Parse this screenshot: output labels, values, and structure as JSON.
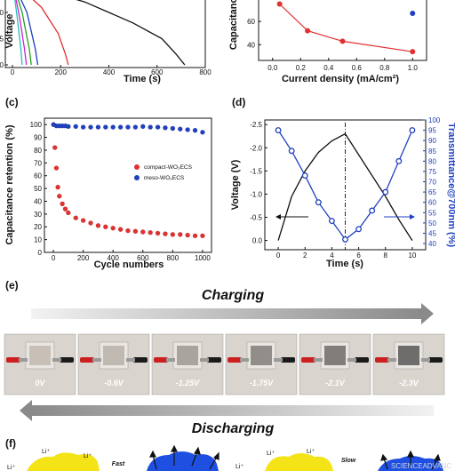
{
  "chart_data": [
    {
      "panel": "",
      "type": "line",
      "xlabel": "Time (s)",
      "ylabel": "Voltage",
      "x_ticks": [
        "0",
        "200",
        "400",
        "600",
        "800"
      ],
      "y_ticks": [
        "-1.0",
        "-0.5",
        "0.0"
      ],
      "xlim": [
        0,
        800
      ],
      "series": [
        {
          "color": "#111111",
          "x": [
            0,
            300,
            500,
            620,
            680,
            715
          ],
          "y": [
            -1.6,
            -1.2,
            -0.8,
            -0.5,
            -0.2,
            0.0
          ]
        },
        {
          "color": "#e03030",
          "x": [
            0,
            120,
            190,
            220,
            232
          ],
          "y": [
            -1.6,
            -1.1,
            -0.6,
            -0.2,
            0.0
          ]
        },
        {
          "color": "#2040c0",
          "x": [
            0,
            60,
            95,
            105
          ],
          "y": [
            -1.6,
            -1.0,
            -0.3,
            0.0
          ]
        },
        {
          "color": "#20a020",
          "x": [
            0,
            40,
            70,
            78
          ],
          "y": [
            -1.6,
            -1.0,
            -0.3,
            0.0
          ]
        },
        {
          "color": "#d020d0",
          "x": [
            0,
            30,
            50,
            58
          ],
          "y": [
            -1.6,
            -0.9,
            -0.3,
            0.0
          ]
        },
        {
          "color": "#20c0c0",
          "x": [
            0,
            20,
            35,
            40
          ],
          "y": [
            -1.6,
            -0.9,
            -0.3,
            0.0
          ]
        }
      ]
    },
    {
      "panel": "",
      "type": "line",
      "xlabel": "Current density (mA/cm²)",
      "ylabel": "Capacitance r",
      "x_ticks": [
        "0.0",
        "0.2",
        "0.4",
        "0.6",
        "0.8",
        "1.0"
      ],
      "y_ticks": [
        "40",
        "60"
      ],
      "xlim": [
        -0.1,
        1.1
      ],
      "ylim": [
        28,
        80
      ],
      "series": [
        {
          "color": "#e03030",
          "x": [
            0.05,
            0.25,
            0.5,
            1.0
          ],
          "y": [
            75,
            52,
            43,
            34
          ]
        },
        {
          "color": "#2040c0",
          "x": [
            1.0
          ],
          "y": [
            67
          ]
        }
      ]
    },
    {
      "panel": "(c)",
      "type": "scatter",
      "xlabel": "Cycle numbers",
      "ylabel": "Capacitance retention (%)",
      "x_ticks": [
        "0",
        "200",
        "400",
        "600",
        "800",
        "1000"
      ],
      "y_ticks": [
        "0",
        "10",
        "20",
        "30",
        "40",
        "50",
        "60",
        "70",
        "80",
        "90",
        "100"
      ],
      "xlim": [
        -60,
        1060
      ],
      "ylim": [
        0,
        105
      ],
      "legend": [
        "compact-WO₃ECS",
        "meso-WO₃ECS"
      ],
      "legend_position": "center-right",
      "series": [
        {
          "name": "compact-WO₃ECS",
          "color": "#e03030",
          "x": [
            1,
            10,
            20,
            30,
            40,
            60,
            80,
            100,
            150,
            200,
            250,
            300,
            350,
            400,
            450,
            500,
            550,
            600,
            650,
            700,
            750,
            800,
            850,
            900,
            950,
            1000
          ],
          "y": [
            100,
            82,
            66,
            51,
            44,
            38,
            34,
            31,
            27,
            25,
            23,
            21,
            20,
            19,
            18,
            17,
            16.5,
            16,
            15.5,
            15,
            14.5,
            14,
            14,
            13.5,
            13,
            13
          ]
        },
        {
          "name": "meso-WO₃ECS",
          "color": "#2040c0",
          "x": [
            1,
            20,
            40,
            60,
            80,
            100,
            150,
            200,
            250,
            300,
            350,
            400,
            450,
            500,
            550,
            600,
            650,
            700,
            750,
            800,
            850,
            900,
            950,
            1000
          ],
          "y": [
            100,
            99,
            99,
            99,
            99,
            98.5,
            98.5,
            98,
            98,
            98,
            98,
            98,
            98,
            98,
            98,
            98.5,
            98,
            98,
            97.5,
            97,
            96.5,
            96,
            95.5,
            94
          ]
        }
      ]
    },
    {
      "panel": "(d)",
      "type": "line",
      "xlabel": "Time (s)",
      "ylabel": "Voltage (V)",
      "ylabel_right": "Transmittance@700nm (%)",
      "x_ticks": [
        "0",
        "2",
        "4",
        "6",
        "8",
        "10"
      ],
      "y_ticks": [
        "0.0",
        "-0.5",
        "-1.0",
        "-1.5",
        "-2.0",
        "-2.5"
      ],
      "y_ticks_right": [
        "40",
        "45",
        "50",
        "55",
        "60",
        "65",
        "70",
        "75",
        "80",
        "85",
        "90",
        "95",
        "100"
      ],
      "xlim": [
        -1,
        11
      ],
      "ylim": [
        0.2,
        -2.6
      ],
      "ylim_right": [
        37,
        100
      ],
      "series": [
        {
          "color": "#111111",
          "axis": "left",
          "x": [
            0,
            1,
            2,
            3,
            4,
            5,
            6,
            7,
            8,
            9,
            10
          ],
          "y": [
            0.0,
            -0.95,
            -1.5,
            -1.9,
            -2.15,
            -2.3,
            -1.85,
            -1.4,
            -0.95,
            -0.45,
            0.0
          ]
        },
        {
          "color": "#2040c0",
          "axis": "right",
          "x": [
            0,
            1,
            2,
            3,
            4,
            5,
            6,
            7,
            8,
            9,
            10
          ],
          "y": [
            95,
            85,
            73,
            60,
            51,
            42,
            47,
            56,
            65,
            80,
            95
          ]
        }
      ],
      "annotation": {
        "vline_x": 5
      }
    }
  ],
  "panel_e": {
    "label": "(e)",
    "charging_label": "Charging",
    "discharging_label": "Discharging",
    "voltages": [
      "0V",
      "-0.6V",
      "-1.25V",
      "-1.75V",
      "-2.1V",
      "-2.3V"
    ],
    "film_shades": [
      "#c8c0b6",
      "#bfb9b2",
      "#a8a49e",
      "#918d89",
      "#807d7a",
      "#6f6d6c"
    ]
  },
  "panel_f": {
    "label": "(f)",
    "fast_label": "Fast",
    "slow_label": "Slow",
    "ion_label": "Li⁺",
    "watermark": "SCIENCEADVANC"
  }
}
